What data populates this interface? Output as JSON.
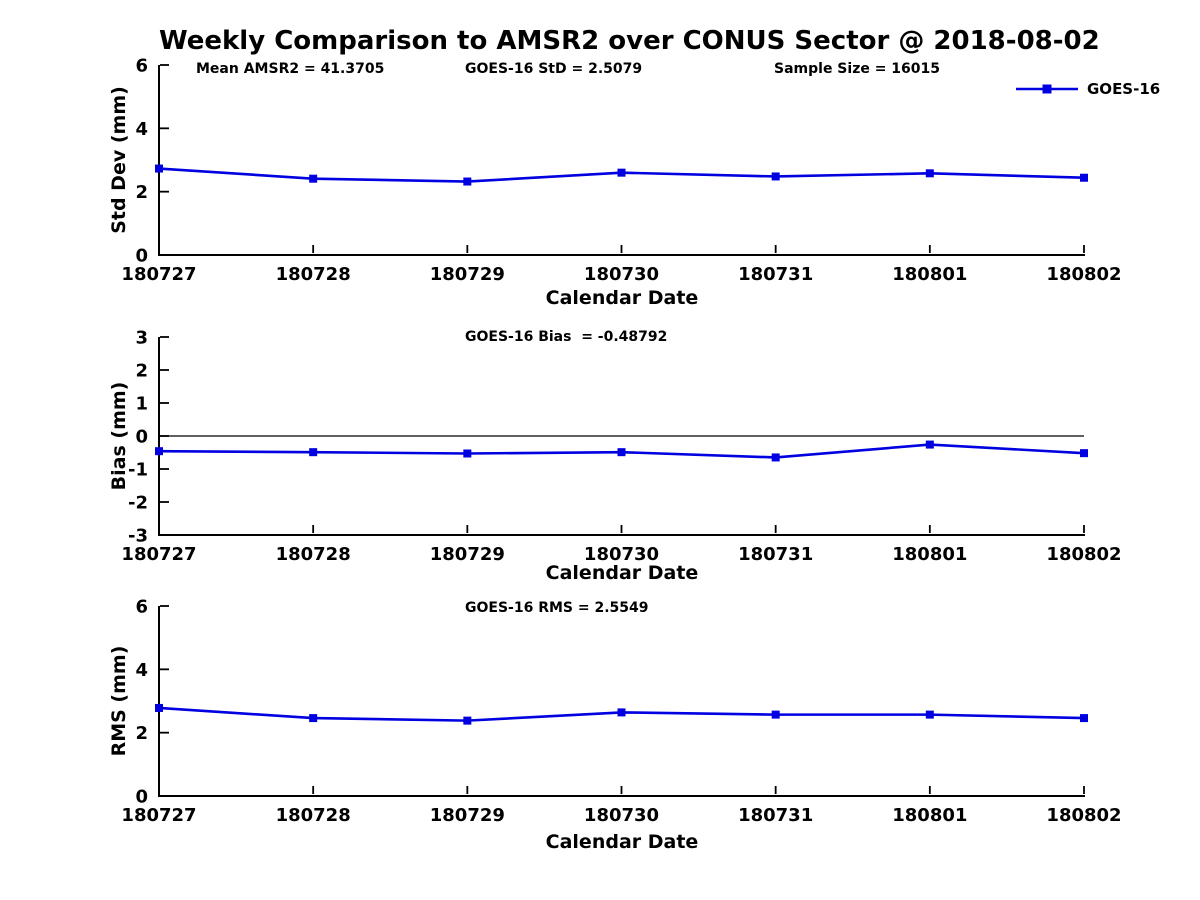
{
  "title": "Weekly Comparison to AMSR2 over CONUS Sector @ 2018-08-02",
  "colors": {
    "line": "#0000e0",
    "axis": "#000000",
    "text": "#000000",
    "background": "#ffffff"
  },
  "chart_data": [
    {
      "id": "stddev",
      "type": "line",
      "categories": [
        "180727",
        "180728",
        "180729",
        "180730",
        "180731",
        "180801",
        "180802"
      ],
      "series": [
        {
          "name": "GOES-16",
          "values": [
            2.73,
            2.41,
            2.32,
            2.6,
            2.48,
            2.58,
            2.44
          ]
        }
      ],
      "xlabel": "Calendar Date",
      "ylabel": "Std Dev (mm)",
      "ylim": [
        0,
        6
      ],
      "yticks": [
        0,
        2,
        4,
        6
      ],
      "zero_line": false,
      "grid": false,
      "marker": "square",
      "annotations": [
        {
          "text": "Mean AMSR2 = 41.3705"
        },
        {
          "text": "GOES-16 StD = 2.5079"
        },
        {
          "text": "Sample Size = 16015"
        }
      ],
      "legend": {
        "label": "GOES-16",
        "position": "top-right"
      }
    },
    {
      "id": "bias",
      "type": "line",
      "categories": [
        "180727",
        "180728",
        "180729",
        "180730",
        "180731",
        "180801",
        "180802"
      ],
      "series": [
        {
          "name": "GOES-16",
          "values": [
            -0.46,
            -0.49,
            -0.53,
            -0.49,
            -0.65,
            -0.26,
            -0.52
          ]
        }
      ],
      "xlabel": "Calendar Date",
      "ylabel": "Bias (mm)",
      "ylim": [
        -3,
        3
      ],
      "yticks": [
        -3,
        -2,
        -1,
        0,
        1,
        2,
        3
      ],
      "zero_line": true,
      "grid": false,
      "marker": "square",
      "annotations": [
        {
          "text": "GOES-16 Bias  = -0.48792"
        }
      ]
    },
    {
      "id": "rms",
      "type": "line",
      "categories": [
        "180727",
        "180728",
        "180729",
        "180730",
        "180731",
        "180801",
        "180802"
      ],
      "series": [
        {
          "name": "GOES-16",
          "values": [
            2.78,
            2.46,
            2.38,
            2.64,
            2.57,
            2.57,
            2.46
          ]
        }
      ],
      "xlabel": "Calendar Date",
      "ylabel": "RMS (mm)",
      "ylim": [
        0,
        6
      ],
      "yticks": [
        0,
        2,
        4,
        6
      ],
      "zero_line": false,
      "grid": false,
      "marker": "square",
      "annotations": [
        {
          "text": "GOES-16 RMS = 2.5549"
        }
      ]
    }
  ]
}
